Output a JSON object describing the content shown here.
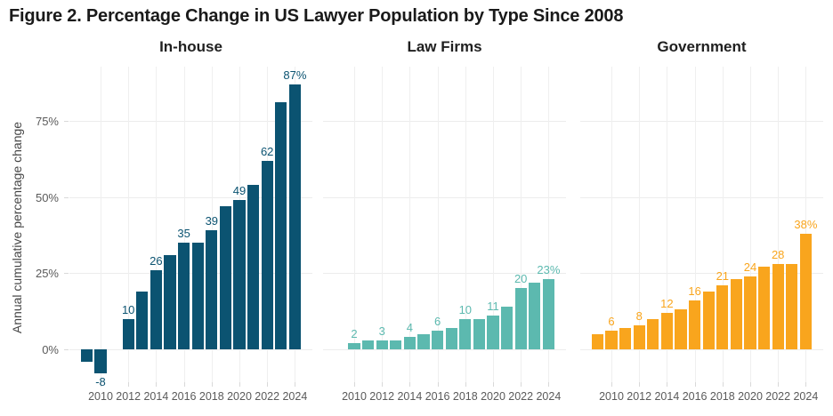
{
  "chart_data": {
    "type": "bar",
    "title": "Figure 2. Percentage Change in US Lawyer Population by Type Since 2008",
    "ylabel": "Annual cumulative percentage change",
    "xlabel": "",
    "grid": true,
    "legend_position": "none",
    "ylim": [
      -14,
      93
    ],
    "y_ticks_pct": [
      0,
      25,
      50,
      75
    ],
    "y_tick_labels": [
      "0%",
      "25%",
      "50%",
      "75%"
    ],
    "x_tick_years": [
      2010,
      2012,
      2014,
      2016,
      2018,
      2020,
      2022,
      2024
    ],
    "x_tick_labels": [
      "2010",
      "2012",
      "2014",
      "2016",
      "2018",
      "2020",
      "2022",
      "2024"
    ],
    "years": [
      2009,
      2010,
      2011,
      2012,
      2013,
      2014,
      2015,
      2016,
      2017,
      2018,
      2019,
      2020,
      2021,
      2022,
      2023,
      2024
    ],
    "facets": [
      {
        "title": "In-house",
        "color": "#0b5371",
        "values": [
          -4,
          -8,
          0,
          10,
          19,
          26,
          31,
          35,
          35,
          39,
          47,
          49,
          54,
          62,
          81,
          87
        ],
        "bar_labels": [
          "",
          "-8",
          "",
          "10",
          "",
          "26",
          "",
          "35",
          "",
          "39",
          "",
          "49",
          "",
          "62",
          "",
          "87%"
        ]
      },
      {
        "title": "Law Firms",
        "color": "#5cb9af",
        "values": [
          0,
          2,
          3,
          3,
          3,
          4,
          5,
          6,
          7,
          10,
          10,
          11,
          14,
          20,
          22,
          23
        ],
        "bar_labels": [
          "",
          "2",
          "",
          "3",
          "",
          "4",
          "",
          "6",
          "",
          "10",
          "",
          "11",
          "",
          "20",
          "",
          "23%"
        ]
      },
      {
        "title": "Government",
        "color": "#f9a51d",
        "values": [
          5,
          6,
          7,
          8,
          10,
          12,
          13,
          16,
          19,
          21,
          23,
          24,
          27,
          28,
          28,
          38
        ],
        "bar_labels": [
          "",
          "6",
          "",
          "8",
          "",
          "12",
          "",
          "16",
          "",
          "21",
          "",
          "24",
          "",
          "28",
          "",
          "38%"
        ]
      }
    ],
    "colors": {
      "grid": "#ececec",
      "axis_text": "#5a5a5a",
      "title_text": "#1a1a1a"
    }
  }
}
